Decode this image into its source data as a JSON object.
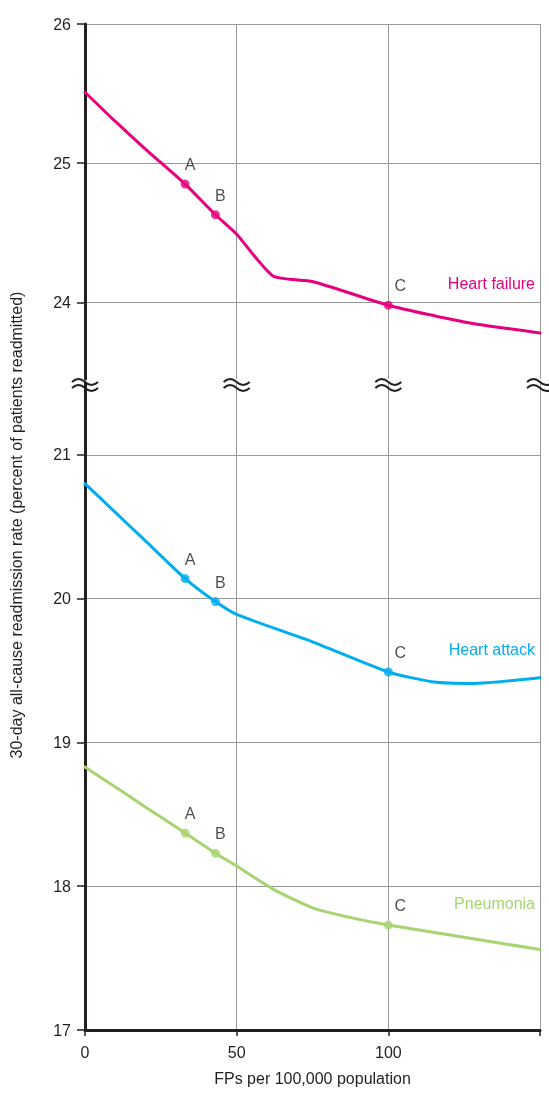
{
  "chart_data": [
    {
      "type": "line",
      "xlim": [
        0,
        150
      ],
      "xticks": [
        0,
        50,
        100,
        {
          "value": 150,
          "label": null
        }
      ],
      "ylim": [
        23.45,
        26
      ],
      "yticks": [
        24,
        25,
        26
      ],
      "tick_labels": "y",
      "grid": true,
      "series": [
        {
          "name": "Heart failure",
          "color": "#e6007e",
          "marker": "none",
          "x": [
            0,
            10,
            20,
            33,
            43,
            50,
            62,
            75,
            100,
            125,
            150
          ],
          "values": [
            25.51,
            25.3,
            25.1,
            24.85,
            24.63,
            24.49,
            24.19,
            24.15,
            23.98,
            23.86,
            23.78
          ]
        },
        {
          "type": "scatter",
          "color": "#e6007e",
          "marker": "circle",
          "x": [
            33,
            43,
            100
          ],
          "values": [
            24.85,
            24.63,
            23.98
          ],
          "value_labels": [
            "A",
            "B",
            "C"
          ]
        }
      ]
    },
    {
      "type": "line",
      "xlabel": "FPs per 100,000 population",
      "ylabel": "30-day all-cause readmission rate (percent of patients readmitted)",
      "xlim": [
        0,
        150
      ],
      "xticks": [
        0,
        50,
        100,
        {
          "value": 150,
          "label": null
        }
      ],
      "ylim": [
        17,
        21.5
      ],
      "yticks": [
        17,
        18,
        19,
        20,
        21
      ],
      "grid": true,
      "series": [
        {
          "name": "Heart attack",
          "color": "#00aeef",
          "marker": "none",
          "x": [
            0,
            10,
            20,
            33,
            43,
            50,
            75,
            100,
            115,
            128,
            150
          ],
          "values": [
            20.8,
            20.6,
            20.4,
            20.14,
            19.98,
            19.89,
            19.7,
            19.49,
            19.42,
            19.41,
            19.45
          ]
        },
        {
          "type": "scatter",
          "color": "#00aeef",
          "marker": "circle",
          "x": [
            33,
            43,
            100
          ],
          "values": [
            20.14,
            19.98,
            19.49
          ],
          "value_labels": [
            "A",
            "B",
            "C"
          ]
        },
        {
          "name": "Pneumonia",
          "color": "#a6d470",
          "marker": "none",
          "x": [
            0,
            10,
            20,
            33,
            43,
            50,
            62,
            75,
            88,
            100,
            150
          ],
          "values": [
            18.83,
            18.69,
            18.55,
            18.37,
            18.23,
            18.14,
            17.98,
            17.85,
            17.78,
            17.73,
            17.56
          ]
        },
        {
          "type": "scatter",
          "color": "#a6d470",
          "marker": "circle",
          "x": [
            33,
            43,
            100
          ],
          "values": [
            18.37,
            18.23,
            17.73
          ],
          "value_labels": [
            "A",
            "B",
            "C"
          ]
        }
      ]
    }
  ]
}
